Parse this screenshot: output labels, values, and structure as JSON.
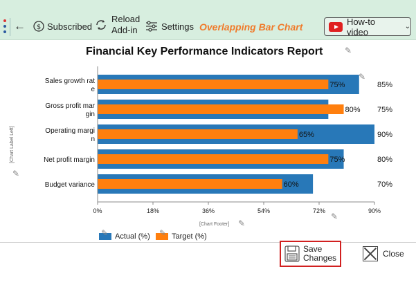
{
  "toolbar": {
    "subscribed": "Subscribed",
    "reload": "Reload\nAdd-in",
    "settings": "Settings",
    "title": "Overlapping Bar Chart",
    "howto": "How-to video"
  },
  "buttons": {
    "save": "Save\nChanges",
    "close": "Close"
  },
  "colors": {
    "actual": "#2878b8",
    "target": "#ff7f0e",
    "accent": "#f07a2a",
    "toolbar_bg": "#d7eedf"
  },
  "chart_data": {
    "type": "bar",
    "orientation": "horizontal",
    "title": "Financial Key Performance Indicators Report",
    "left_label": "[Chart Label Left]",
    "footer_label": "[Chart Footer]",
    "categories": [
      "Sales growth rate",
      "Gross profit margin",
      "Operating margin",
      "Net profit margin",
      "Budget variance"
    ],
    "category_labels": [
      [
        "Sales growth rat",
        "e"
      ],
      [
        "Gross profit mar",
        "gin"
      ],
      [
        "Operating margi",
        "n"
      ],
      [
        "Net profit margin"
      ],
      [
        "Budget variance"
      ]
    ],
    "series": [
      {
        "name": "Actual (%)",
        "values": [
          85,
          75,
          90,
          80,
          70
        ]
      },
      {
        "name": "Target (%)",
        "values": [
          75,
          80,
          65,
          75,
          60
        ]
      }
    ],
    "target_labels": [
      "75%",
      "80%",
      "65%",
      "75%",
      "60%"
    ],
    "actual_labels": [
      "85%",
      "75%",
      "90%",
      "80%",
      "70%"
    ],
    "xlim": [
      0,
      90
    ],
    "xticks": [
      "0%",
      "18%",
      "36%",
      "54%",
      "72%",
      "90%"
    ],
    "legend": "bottom-left",
    "grid": false
  }
}
